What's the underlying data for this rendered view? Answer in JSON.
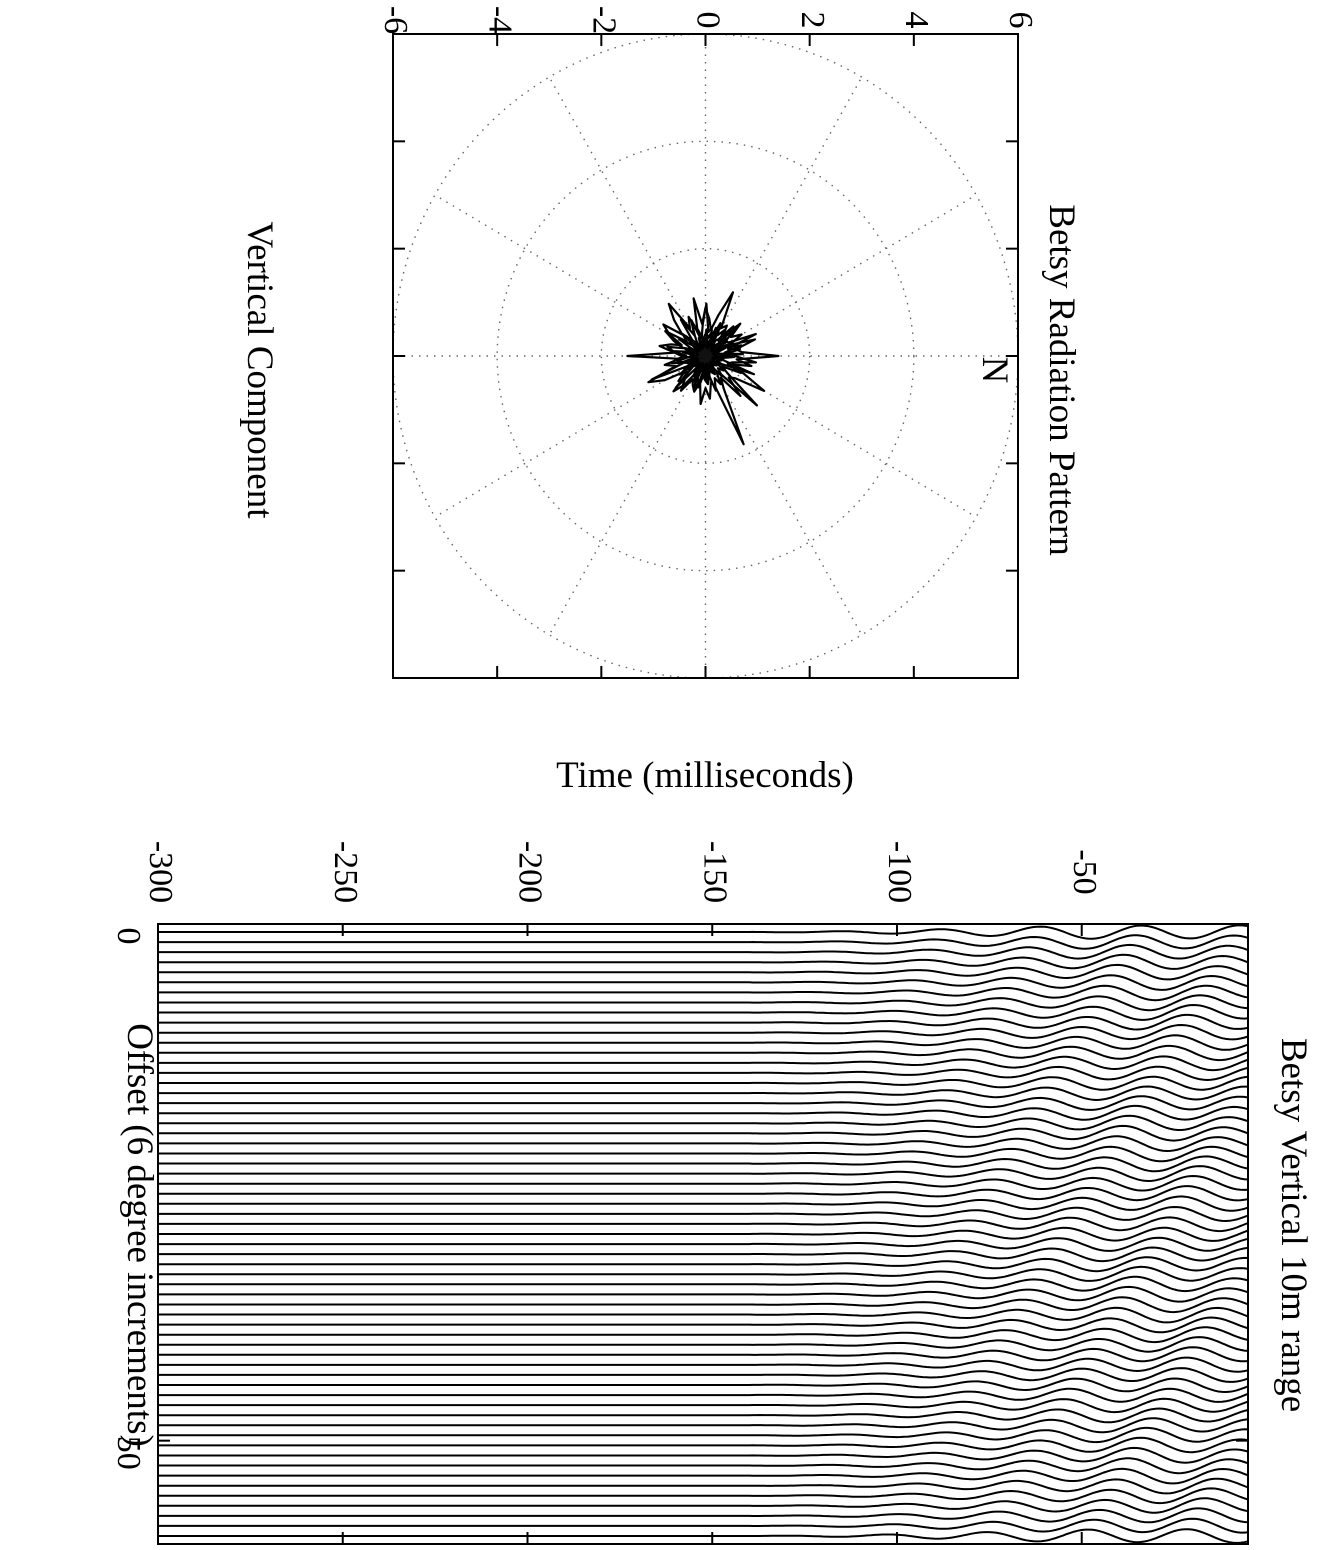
{
  "chart_data": [
    {
      "type": "polar",
      "title": "Betsy Radiation Pattern",
      "xlabel": "Vertical Component",
      "annotation": "N",
      "tick_labels": [
        "-6",
        "-4",
        "-2",
        "0",
        "2",
        "4",
        "6"
      ],
      "ticks": [
        -6,
        -4,
        -2,
        0,
        2,
        4,
        6
      ],
      "xlim": [
        -6,
        6
      ],
      "ylim": [
        -6,
        6
      ],
      "grid": "dotted polar rings and spokes",
      "rings": [
        2,
        4,
        6
      ],
      "spoke_step_deg": 30,
      "line_color": "#000000",
      "series": [
        {
          "theta_deg": [
            0,
            6,
            12,
            18,
            24,
            30,
            36,
            42,
            48,
            54,
            60,
            66,
            72,
            78,
            84,
            90,
            96,
            102,
            108,
            114,
            120,
            126,
            132,
            138,
            144,
            150,
            156,
            162,
            168,
            174,
            180,
            186,
            192,
            198,
            204,
            210,
            216,
            222,
            228,
            234,
            240,
            246,
            252,
            258,
            264,
            270,
            276,
            282,
            288,
            294,
            300,
            306,
            312,
            318,
            324,
            330,
            336,
            342,
            348,
            354
          ],
          "r": [
            1.4,
            0.6,
            0.9,
            0.5,
            0.8,
            1.3,
            0.7,
            0.6,
            1.0,
            0.5,
            0.7,
            1.8,
            0.6,
            0.5,
            0.8,
            0.6,
            0.9,
            0.5,
            0.7,
            0.6,
            0.5,
            0.8,
            0.6,
            0.7,
            0.5,
            0.9,
            1.2,
            0.6,
            0.8,
            0.5,
            1.5,
            0.6,
            0.9,
            0.7,
            0.5,
            0.8,
            1.0,
            0.6,
            0.9,
            1.2,
            0.6,
            0.8,
            0.5,
            1.1,
            0.6,
            0.9,
            0.7,
            0.5,
            0.8,
            1.3,
            0.6,
            0.7,
            0.5,
            0.9,
            0.6,
            0.8,
            0.5,
            1.0,
            0.6,
            0.7
          ]
        }
      ]
    },
    {
      "type": "seismic-traces",
      "title": "Betsy Vertical 10m range",
      "xlabel": "Offset (6 degree increments)",
      "ylabel": "Time (milliseconds)",
      "x_tick_labels": [
        "0",
        "50"
      ],
      "x_ticks": [
        0,
        50
      ],
      "y_tick_labels": [
        "-300",
        "-250",
        "-200",
        "-150",
        "-100",
        "-50"
      ],
      "y_ticks": [
        -300,
        -250,
        -200,
        -150,
        -100,
        -50
      ],
      "xlim": [
        0,
        60
      ],
      "ylim": [
        -300,
        -5
      ],
      "trace_count": 61,
      "line_color": "#000000"
    }
  ]
}
